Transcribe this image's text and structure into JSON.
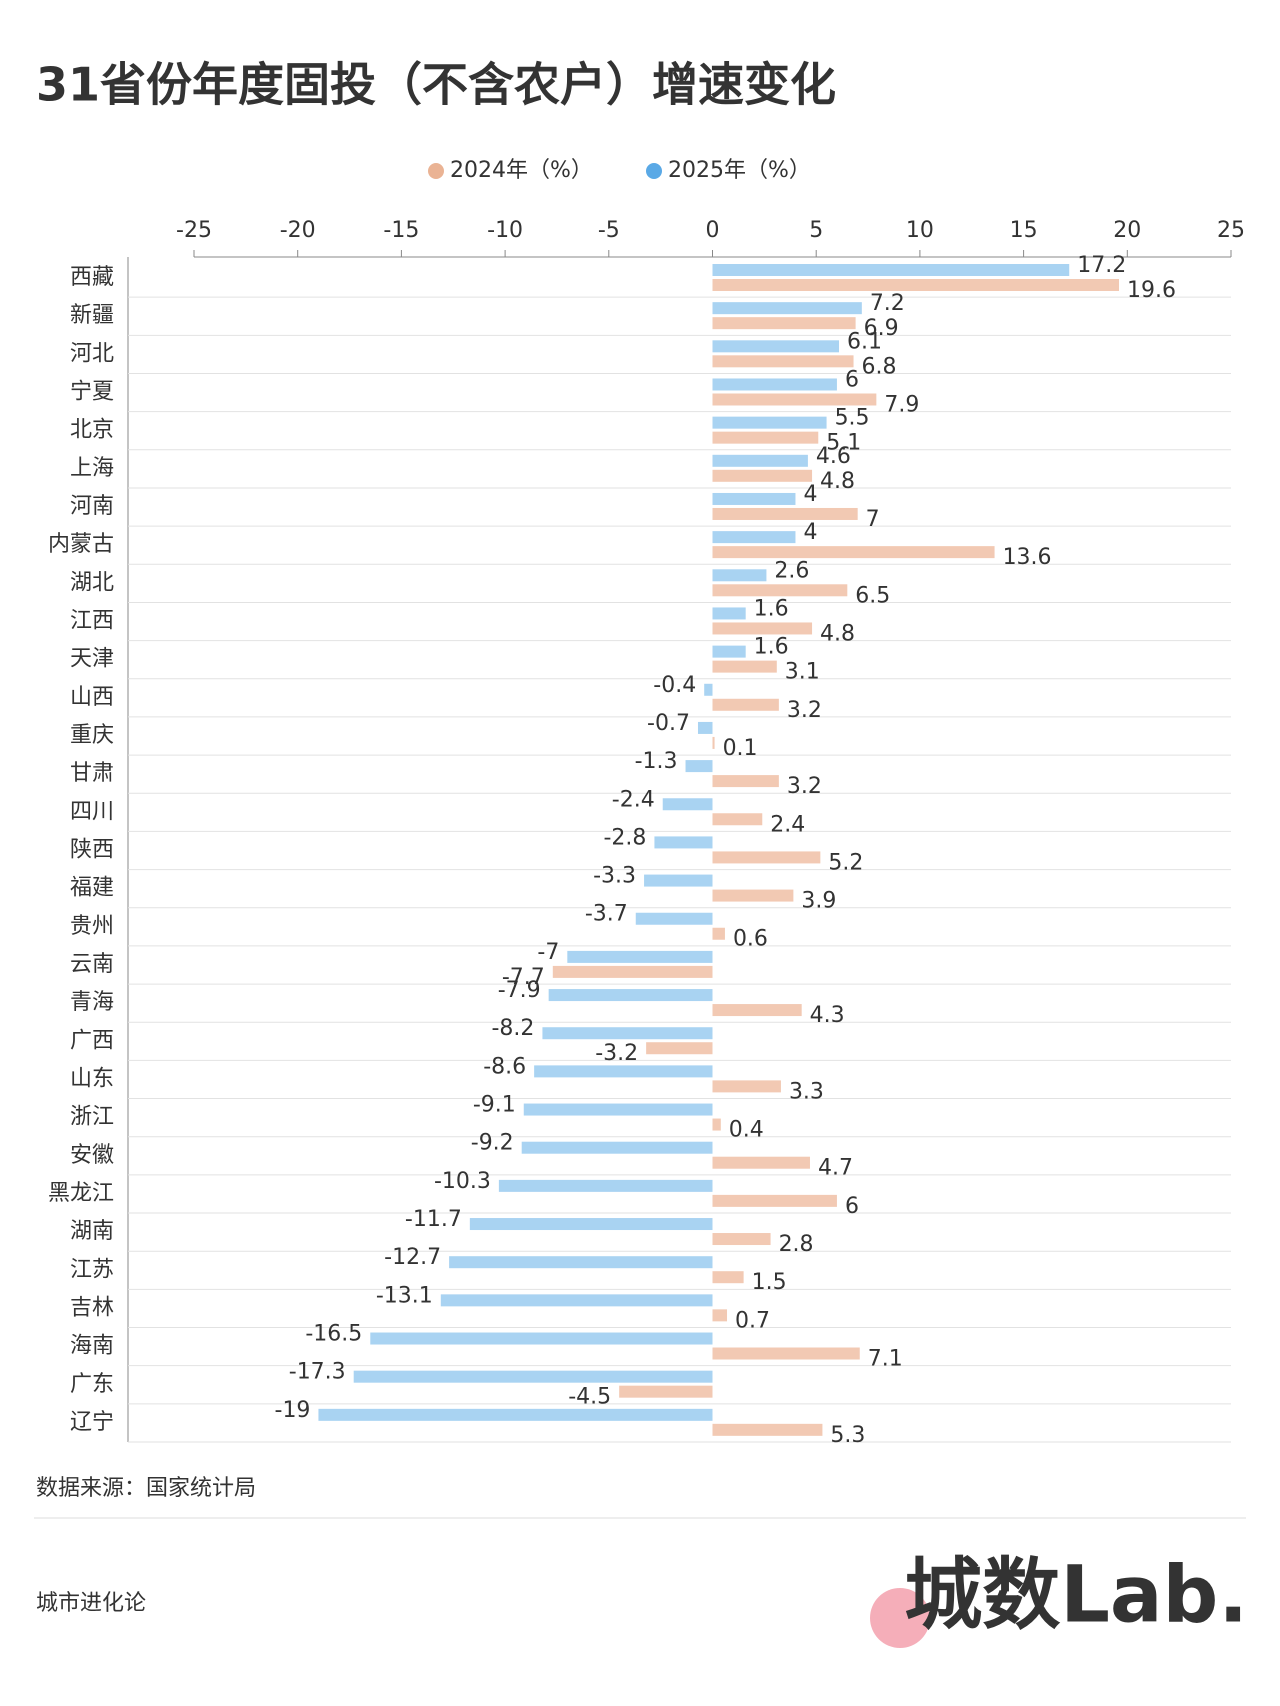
{
  "chart_data": {
    "type": "hbar",
    "title": "31省份年度固投（不含农户）增速变化",
    "categories": [
      "西藏",
      "新疆",
      "河北",
      "宁夏",
      "北京",
      "上海",
      "河南",
      "内蒙古",
      "湖北",
      "江西",
      "天津",
      "山西",
      "重庆",
      "甘肃",
      "四川",
      "陕西",
      "福建",
      "贵州",
      "云南",
      "青海",
      "广西",
      "山东",
      "浙江",
      "安徽",
      "黑龙江",
      "湖南",
      "江苏",
      "吉林",
      "海南",
      "广东",
      "辽宁"
    ],
    "series": [
      {
        "name": "2024年（%）",
        "color": "#f2c9b3",
        "values": [
          19.6,
          6.9,
          6.8,
          7.9,
          5.1,
          4.8,
          7,
          13.6,
          6.5,
          4.8,
          3.1,
          3.2,
          0.1,
          3.2,
          2.4,
          5.2,
          3.9,
          0.6,
          -7.7,
          4.3,
          -3.2,
          3.3,
          0.4,
          4.7,
          6,
          2.8,
          1.5,
          0.7,
          7.1,
          -4.5,
          5.3
        ]
      },
      {
        "name": "2025年（%）",
        "color": "#a9d3f2",
        "values": [
          17.2,
          7.2,
          6.1,
          6,
          5.5,
          4.6,
          4,
          4,
          2.6,
          1.6,
          1.6,
          -0.4,
          -0.7,
          -1.3,
          -2.4,
          -2.8,
          -3.3,
          -3.7,
          -7,
          -7.9,
          -8.2,
          -8.6,
          -9.1,
          -9.2,
          -10.3,
          -11.7,
          -12.7,
          -13.1,
          -16.5,
          -17.3,
          -19
        ]
      }
    ],
    "xlim": [
      -25,
      25
    ],
    "xticks": [
      -25,
      -20,
      -15,
      -10,
      -5,
      0,
      5,
      10,
      15,
      20,
      25
    ],
    "grid": false,
    "legend": "top"
  },
  "footer": {
    "source": "数据来源：国家统计局",
    "brand": "城市进化论",
    "logo": "城数Lab."
  }
}
